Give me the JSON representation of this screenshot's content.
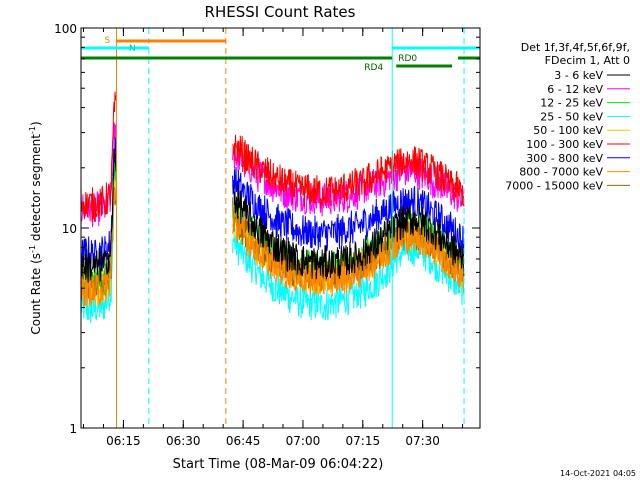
{
  "chart_data": {
    "type": "line",
    "title": "RHESSI Count Rates",
    "xlabel": "Start Time (08-Mar-09 06:04:22)",
    "ylabel_main": "Count Rate (s",
    "ylabel_sup1": "-1",
    "ylabel_mid": " detector segment",
    "ylabel_sup2": "-1",
    "ylabel_end": ")",
    "y_scale": "log",
    "ylim": [
      1,
      100
    ],
    "xlim_minutes_after_start": [
      0,
      100
    ],
    "x_ticks": [
      {
        "label": "06:15",
        "minute": 10.63
      },
      {
        "label": "06:30",
        "minute": 25.63
      },
      {
        "label": "06:45",
        "minute": 40.63
      },
      {
        "label": "07:00",
        "minute": 55.63
      },
      {
        "label": "07:15",
        "minute": 70.63
      },
      {
        "label": "07:30",
        "minute": 85.63
      }
    ],
    "y_ticks": [
      {
        "label": "1",
        "value": 1
      },
      {
        "label": "10",
        "value": 10
      },
      {
        "label": "100",
        "value": 100
      }
    ],
    "legend": {
      "placement": "right",
      "header": [
        "Det 1f,3f,4f,5f,6f,9f,",
        "FDecim 1, Att 0"
      ],
      "entries": [
        {
          "label": "3 - 6 keV",
          "color": "#000000"
        },
        {
          "label": "6 - 12 keV",
          "color": "#ff00ff"
        },
        {
          "label": "12 - 25 keV",
          "color": "#00ee00"
        },
        {
          "label": "25 - 50 keV",
          "color": "#00ffff"
        },
        {
          "label": "50 - 100 keV",
          "color": "#ffcc00"
        },
        {
          "label": "100 - 300 keV",
          "color": "#ff0000"
        },
        {
          "label": "300 - 800 keV",
          "color": "#0000ff"
        },
        {
          "label": "800 - 7000 keV",
          "color": "#ff8800"
        },
        {
          "label": "7000 - 15000 keV",
          "color": "#996600"
        }
      ]
    },
    "intervals": [
      {
        "label": "S",
        "start": 8.9,
        "end": 36.3,
        "color": "#ff8000"
      },
      {
        "label": "N",
        "start": 0,
        "end": 17.0,
        "color": "#00ffff"
      },
      {
        "label": "RD0",
        "start": 78.0,
        "end": 100,
        "color": "#00ffff"
      },
      {
        "label": "RD4",
        "start": 0,
        "end": 100,
        "color": "#008000"
      }
    ],
    "event_lines": [
      {
        "minute": 8.9,
        "color": "#ff8000",
        "style": "solid"
      },
      {
        "minute": 17.0,
        "color": "#00ffff",
        "style": "dashed"
      },
      {
        "minute": 36.3,
        "color": "#ff8000",
        "style": "dashed"
      },
      {
        "minute": 78.0,
        "color": "#00ffff",
        "style": "solid"
      },
      {
        "minute": 96.0,
        "color": "#00ffff",
        "style": "dashed"
      }
    ],
    "data_gap_minutes": [
      9.0,
      38.0
    ],
    "series": [
      {
        "name": "3 - 6 keV",
        "color": "#000000",
        "x": [
          0,
          3,
          6,
          7.5,
          8.3,
          38,
          41,
          45,
          50,
          55,
          60,
          65,
          70,
          73,
          76,
          78,
          80,
          82,
          84,
          86,
          88,
          90,
          92,
          94,
          96
        ],
        "y": [
          6.6,
          6.4,
          6.6,
          7.5,
          22,
          14.5,
          12,
          9.5,
          7.8,
          6.9,
          6.6,
          6.8,
          7.3,
          8.0,
          9.0,
          9.8,
          10.6,
          11.0,
          11.1,
          10.6,
          9.8,
          9.0,
          8.3,
          7.6,
          7.0
        ]
      },
      {
        "name": "6 - 12 keV",
        "color": "#ff00ff",
        "x": [
          0,
          3,
          6,
          7.5,
          8.3,
          38,
          41,
          45,
          50,
          55,
          60,
          65,
          70,
          73,
          76,
          78,
          80,
          82,
          84,
          86,
          88,
          90,
          92,
          94,
          96
        ],
        "y": [
          12.5,
          12.2,
          12.6,
          14,
          30,
          24,
          21,
          18,
          15.5,
          14.3,
          13.8,
          14.2,
          15.2,
          16.2,
          17.3,
          18.3,
          19.0,
          19.3,
          19.1,
          18.4,
          17.3,
          16.3,
          15.3,
          14.4,
          13.5
        ]
      },
      {
        "name": "12 - 25 keV",
        "color": "#00ee00",
        "x": [
          0,
          3,
          6,
          7.5,
          8.3,
          38,
          41,
          45,
          50,
          55,
          60,
          65,
          70,
          73,
          76,
          78,
          80,
          82,
          84,
          86,
          88,
          90,
          92,
          94,
          96
        ],
        "y": [
          5.6,
          5.4,
          5.6,
          6.4,
          18,
          12.5,
          10.5,
          8.6,
          7.2,
          6.5,
          6.3,
          6.5,
          7.0,
          7.6,
          8.4,
          9.1,
          9.8,
          10.1,
          10.1,
          9.7,
          9.0,
          8.3,
          7.6,
          7.0,
          6.4
        ]
      },
      {
        "name": "25 - 50 keV",
        "color": "#00ffff",
        "x": [
          0,
          3,
          6,
          7.5,
          8.3,
          38,
          41,
          45,
          50,
          55,
          60,
          65,
          70,
          73,
          76,
          78,
          80,
          82,
          84,
          86,
          88,
          90,
          92,
          94,
          96
        ],
        "y": [
          4.0,
          3.9,
          4.1,
          4.8,
          14,
          8.8,
          7.2,
          5.8,
          4.8,
          4.3,
          4.1,
          4.3,
          4.7,
          5.2,
          5.9,
          6.6,
          7.4,
          7.8,
          7.9,
          7.5,
          6.9,
          6.3,
          5.8,
          5.3,
          4.9
        ]
      },
      {
        "name": "50 - 100 keV",
        "color": "#ffcc00",
        "x": [
          0,
          3,
          6,
          7.5,
          8.3,
          38,
          41,
          45,
          50,
          55,
          60,
          65,
          70,
          73,
          76,
          78,
          80,
          82,
          84,
          86,
          88,
          90,
          92,
          94,
          96
        ],
        "y": [
          5.1,
          4.9,
          5.1,
          5.8,
          16,
          11.2,
          9.4,
          7.6,
          6.4,
          5.8,
          5.6,
          5.8,
          6.3,
          6.9,
          7.6,
          8.3,
          8.9,
          9.2,
          9.2,
          8.8,
          8.2,
          7.5,
          6.9,
          6.3,
          5.8
        ]
      },
      {
        "name": "100 - 300 keV",
        "color": "#ff0000",
        "x": [
          0,
          3,
          6,
          7.5,
          8.3,
          38,
          41,
          45,
          50,
          55,
          60,
          65,
          70,
          73,
          76,
          78,
          80,
          82,
          84,
          86,
          88,
          90,
          92,
          94,
          96
        ],
        "y": [
          13.5,
          13.0,
          13.5,
          15,
          40,
          26,
          23,
          19.5,
          17.0,
          15.6,
          15.0,
          15.5,
          16.6,
          17.8,
          19.2,
          20.4,
          21.3,
          21.7,
          21.4,
          20.5,
          19.2,
          18.0,
          16.8,
          15.7,
          14.7
        ]
      },
      {
        "name": "300 - 800 keV",
        "color": "#0000ff",
        "x": [
          0,
          3,
          6,
          7.5,
          8.3,
          38,
          41,
          45,
          50,
          55,
          60,
          65,
          70,
          73,
          76,
          78,
          80,
          82,
          84,
          86,
          88,
          90,
          92,
          94,
          96
        ],
        "y": [
          7.6,
          7.4,
          7.7,
          8.5,
          24,
          17.5,
          15.0,
          12.5,
          10.6,
          9.6,
          9.3,
          9.6,
          10.3,
          11.1,
          12.0,
          12.8,
          13.4,
          13.6,
          13.4,
          12.8,
          11.9,
          11.0,
          10.2,
          9.4,
          8.7
        ]
      },
      {
        "name": "800 - 7000 keV",
        "color": "#ff8800",
        "x": [
          0,
          3,
          6,
          7.5,
          8.3,
          38,
          41,
          45,
          50,
          55,
          60,
          65,
          70,
          73,
          76,
          78,
          80,
          82,
          84,
          86,
          88,
          90,
          92,
          94,
          96
        ],
        "y": [
          5.0,
          4.8,
          5.0,
          5.6,
          15,
          11.0,
          9.2,
          7.4,
          6.2,
          5.6,
          5.4,
          5.6,
          6.1,
          6.7,
          7.4,
          8.1,
          8.7,
          9.0,
          9.0,
          8.6,
          8.0,
          7.3,
          6.7,
          6.1,
          5.6
        ]
      },
      {
        "name": "7000 - 15000 keV",
        "color": "#996600",
        "x": [
          0,
          3,
          6,
          7.5,
          8.3,
          38,
          41,
          45,
          50,
          55,
          60,
          65,
          70,
          73,
          76,
          78,
          80,
          82,
          84,
          86,
          88,
          90,
          92,
          94,
          96
        ],
        "y": [
          5.3,
          5.1,
          5.3,
          5.9,
          15.5,
          11.6,
          9.7,
          7.9,
          6.6,
          6.0,
          5.8,
          6.0,
          6.5,
          7.1,
          7.8,
          8.5,
          9.1,
          9.4,
          9.4,
          9.0,
          8.4,
          7.7,
          7.1,
          6.5,
          6.0
        ]
      }
    ],
    "timestamp": "14-Oct-2021 04:05"
  }
}
